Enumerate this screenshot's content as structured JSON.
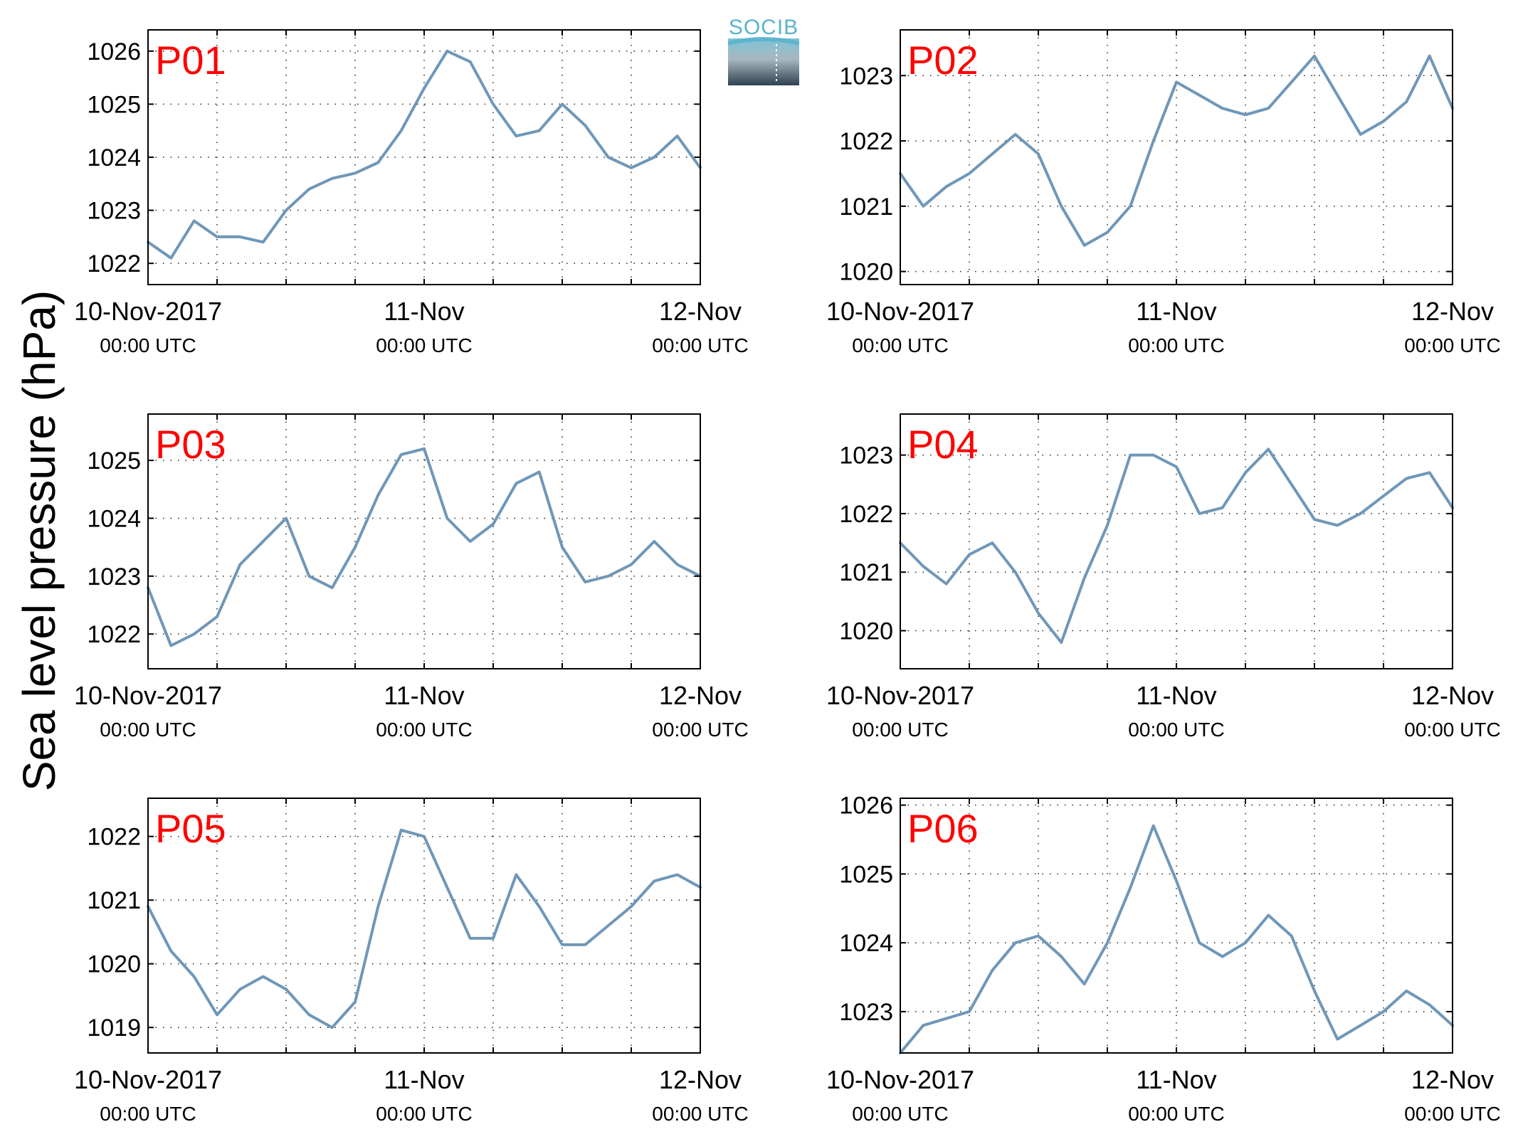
{
  "figure": {
    "ylabel": "Sea level pressure (hPa)",
    "logo_text": "SOCIB",
    "line_color": "#6f97b8",
    "panel_label_color": "#ff0000"
  },
  "chart_data": [
    {
      "type": "line",
      "label": "P01",
      "xlim": [
        "10-Nov-2017 00:00",
        "12-Nov-2017 00:00"
      ],
      "xticks": [
        {
          "line1": "10-Nov-2017",
          "line2": "00:00 UTC"
        },
        {
          "line1": "11-Nov",
          "line2": "00:00 UTC"
        },
        {
          "line1": "12-Nov",
          "line2": "00:00 UTC"
        }
      ],
      "x_hours": [
        0,
        2,
        4,
        6,
        8,
        10,
        12,
        14,
        16,
        18,
        20,
        22,
        24,
        26,
        28,
        30,
        32,
        34,
        36,
        38,
        40,
        42,
        44,
        46,
        48
      ],
      "yticks": [
        1022,
        1023,
        1024,
        1025,
        1026
      ],
      "ylim": [
        1021.6,
        1026.4
      ],
      "values": [
        1022.4,
        1022.1,
        1022.8,
        1022.5,
        1022.5,
        1022.4,
        1023.0,
        1023.4,
        1023.6,
        1023.7,
        1023.9,
        1024.5,
        1025.3,
        1026.0,
        1025.8,
        1025.0,
        1024.4,
        1024.5,
        1025.0,
        1024.6,
        1024.0,
        1023.8,
        1024.0,
        1024.4,
        1023.8
      ]
    },
    {
      "type": "line",
      "label": "P02",
      "xlim": [
        "10-Nov-2017 00:00",
        "12-Nov-2017 00:00"
      ],
      "xticks": [
        {
          "line1": "10-Nov-2017",
          "line2": "00:00 UTC"
        },
        {
          "line1": "11-Nov",
          "line2": "00:00 UTC"
        },
        {
          "line1": "12-Nov",
          "line2": "00:00 UTC"
        }
      ],
      "x_hours": [
        0,
        2,
        4,
        6,
        8,
        10,
        12,
        14,
        16,
        18,
        20,
        22,
        24,
        26,
        28,
        30,
        32,
        34,
        36,
        38,
        40,
        42,
        44,
        46,
        48
      ],
      "yticks": [
        1020,
        1021,
        1022,
        1023
      ],
      "ylim": [
        1019.8,
        1023.7
      ],
      "values": [
        1021.5,
        1021.0,
        1021.3,
        1021.5,
        1021.8,
        1022.1,
        1021.8,
        1021.0,
        1020.4,
        1020.6,
        1021.0,
        1022.0,
        1022.9,
        1022.7,
        1022.5,
        1022.4,
        1022.5,
        1022.9,
        1023.3,
        1022.7,
        1022.1,
        1022.3,
        1022.6,
        1023.3,
        1022.5
      ]
    },
    {
      "type": "line",
      "label": "P03",
      "xlim": [
        "10-Nov-2017 00:00",
        "12-Nov-2017 00:00"
      ],
      "xticks": [
        {
          "line1": "10-Nov-2017",
          "line2": "00:00 UTC"
        },
        {
          "line1": "11-Nov",
          "line2": "00:00 UTC"
        },
        {
          "line1": "12-Nov",
          "line2": "00:00 UTC"
        }
      ],
      "x_hours": [
        0,
        2,
        4,
        6,
        8,
        10,
        12,
        14,
        16,
        18,
        20,
        22,
        24,
        26,
        28,
        30,
        32,
        34,
        36,
        38,
        40,
        42,
        44,
        46,
        48
      ],
      "yticks": [
        1022,
        1023,
        1024,
        1025
      ],
      "ylim": [
        1021.4,
        1025.8
      ],
      "values": [
        1022.8,
        1021.8,
        1022.0,
        1022.3,
        1023.2,
        1023.6,
        1024.0,
        1023.0,
        1022.8,
        1023.5,
        1024.4,
        1025.1,
        1025.2,
        1024.0,
        1023.6,
        1023.9,
        1024.6,
        1024.8,
        1023.5,
        1022.9,
        1023.0,
        1023.2,
        1023.6,
        1023.2,
        1023.0
      ]
    },
    {
      "type": "line",
      "label": "P04",
      "xlim": [
        "10-Nov-2017 00:00",
        "12-Nov-2017 00:00"
      ],
      "xticks": [
        {
          "line1": "10-Nov-2017",
          "line2": "00:00 UTC"
        },
        {
          "line1": "11-Nov",
          "line2": "00:00 UTC"
        },
        {
          "line1": "12-Nov",
          "line2": "00:00 UTC"
        }
      ],
      "x_hours": [
        0,
        2,
        4,
        6,
        8,
        10,
        12,
        14,
        16,
        18,
        20,
        22,
        24,
        26,
        28,
        30,
        32,
        34,
        36,
        38,
        40,
        42,
        44,
        46,
        48
      ],
      "yticks": [
        1020,
        1021,
        1022,
        1023
      ],
      "ylim": [
        1019.35,
        1023.7
      ],
      "values": [
        1021.5,
        1021.1,
        1020.8,
        1021.3,
        1021.5,
        1021.0,
        1020.3,
        1019.8,
        1020.9,
        1021.8,
        1023.0,
        1023.0,
        1022.8,
        1022.0,
        1022.1,
        1022.7,
        1023.1,
        1022.5,
        1021.9,
        1021.8,
        1022.0,
        1022.3,
        1022.6,
        1022.7,
        1022.1
      ]
    },
    {
      "type": "line",
      "label": "P05",
      "xlim": [
        "10-Nov-2017 00:00",
        "12-Nov-2017 00:00"
      ],
      "xticks": [
        {
          "line1": "10-Nov-2017",
          "line2": "00:00 UTC"
        },
        {
          "line1": "11-Nov",
          "line2": "00:00 UTC"
        },
        {
          "line1": "12-Nov",
          "line2": "00:00 UTC"
        }
      ],
      "x_hours": [
        0,
        2,
        4,
        6,
        8,
        10,
        12,
        14,
        16,
        18,
        20,
        22,
        24,
        26,
        28,
        30,
        32,
        34,
        36,
        38,
        40,
        42,
        44,
        46,
        48
      ],
      "yticks": [
        1019,
        1020,
        1021,
        1022
      ],
      "ylim": [
        1018.6,
        1022.6
      ],
      "values": [
        1020.9,
        1020.2,
        1019.8,
        1019.2,
        1019.6,
        1019.8,
        1019.6,
        1019.2,
        1019.0,
        1019.4,
        1020.9,
        1022.1,
        1022.0,
        1021.2,
        1020.4,
        1020.4,
        1021.4,
        1020.9,
        1020.3,
        1020.3,
        1020.6,
        1020.9,
        1021.3,
        1021.4,
        1021.2
      ]
    },
    {
      "type": "line",
      "label": "P06",
      "xlim": [
        "10-Nov-2017 00:00",
        "12-Nov-2017 00:00"
      ],
      "xticks": [
        {
          "line1": "10-Nov-2017",
          "line2": "00:00 UTC"
        },
        {
          "line1": "11-Nov",
          "line2": "00:00 UTC"
        },
        {
          "line1": "12-Nov",
          "line2": "00:00 UTC"
        }
      ],
      "x_hours": [
        0,
        2,
        4,
        6,
        8,
        10,
        12,
        14,
        16,
        18,
        20,
        22,
        24,
        26,
        28,
        30,
        32,
        34,
        36,
        38,
        40,
        42,
        44,
        46,
        48
      ],
      "yticks": [
        1023,
        1024,
        1025,
        1026
      ],
      "ylim": [
        1022.4,
        1026.1
      ],
      "values": [
        1022.4,
        1022.8,
        1022.9,
        1023.0,
        1023.6,
        1024.0,
        1024.1,
        1023.8,
        1023.4,
        1024.0,
        1024.8,
        1025.7,
        1024.9,
        1024.0,
        1023.8,
        1024.0,
        1024.4,
        1024.1,
        1023.3,
        1022.6,
        1022.8,
        1023.0,
        1023.3,
        1023.1,
        1022.8
      ]
    }
  ]
}
